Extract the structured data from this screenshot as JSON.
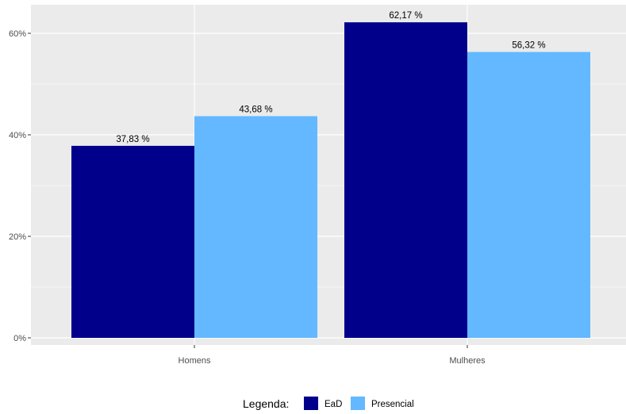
{
  "chart_data": {
    "type": "bar",
    "title": "",
    "xlabel": "",
    "ylabel": "",
    "categories": [
      "Homens",
      "Mulheres"
    ],
    "series": [
      {
        "name": "EaD",
        "color": "#00008b",
        "values": [
          37.83,
          62.17
        ],
        "labels": [
          "37,83 %",
          "62,17 %"
        ]
      },
      {
        "name": "Presencial",
        "color": "#63b8ff",
        "values": [
          43.68,
          56.32
        ],
        "labels": [
          "43,68 %",
          "56,32 %"
        ]
      }
    ],
    "ylim": [
      0,
      65.3
    ],
    "yticks": [
      0,
      20,
      40,
      60
    ],
    "ytick_labels": [
      "0%",
      "20%",
      "40%",
      "60%"
    ],
    "grid": true,
    "panel_background": "#ebebeb",
    "grid_color": "#ffffff",
    "legend": {
      "title": "Legenda:",
      "position": "bottom",
      "entries": [
        "EaD",
        "Presencial"
      ]
    }
  }
}
